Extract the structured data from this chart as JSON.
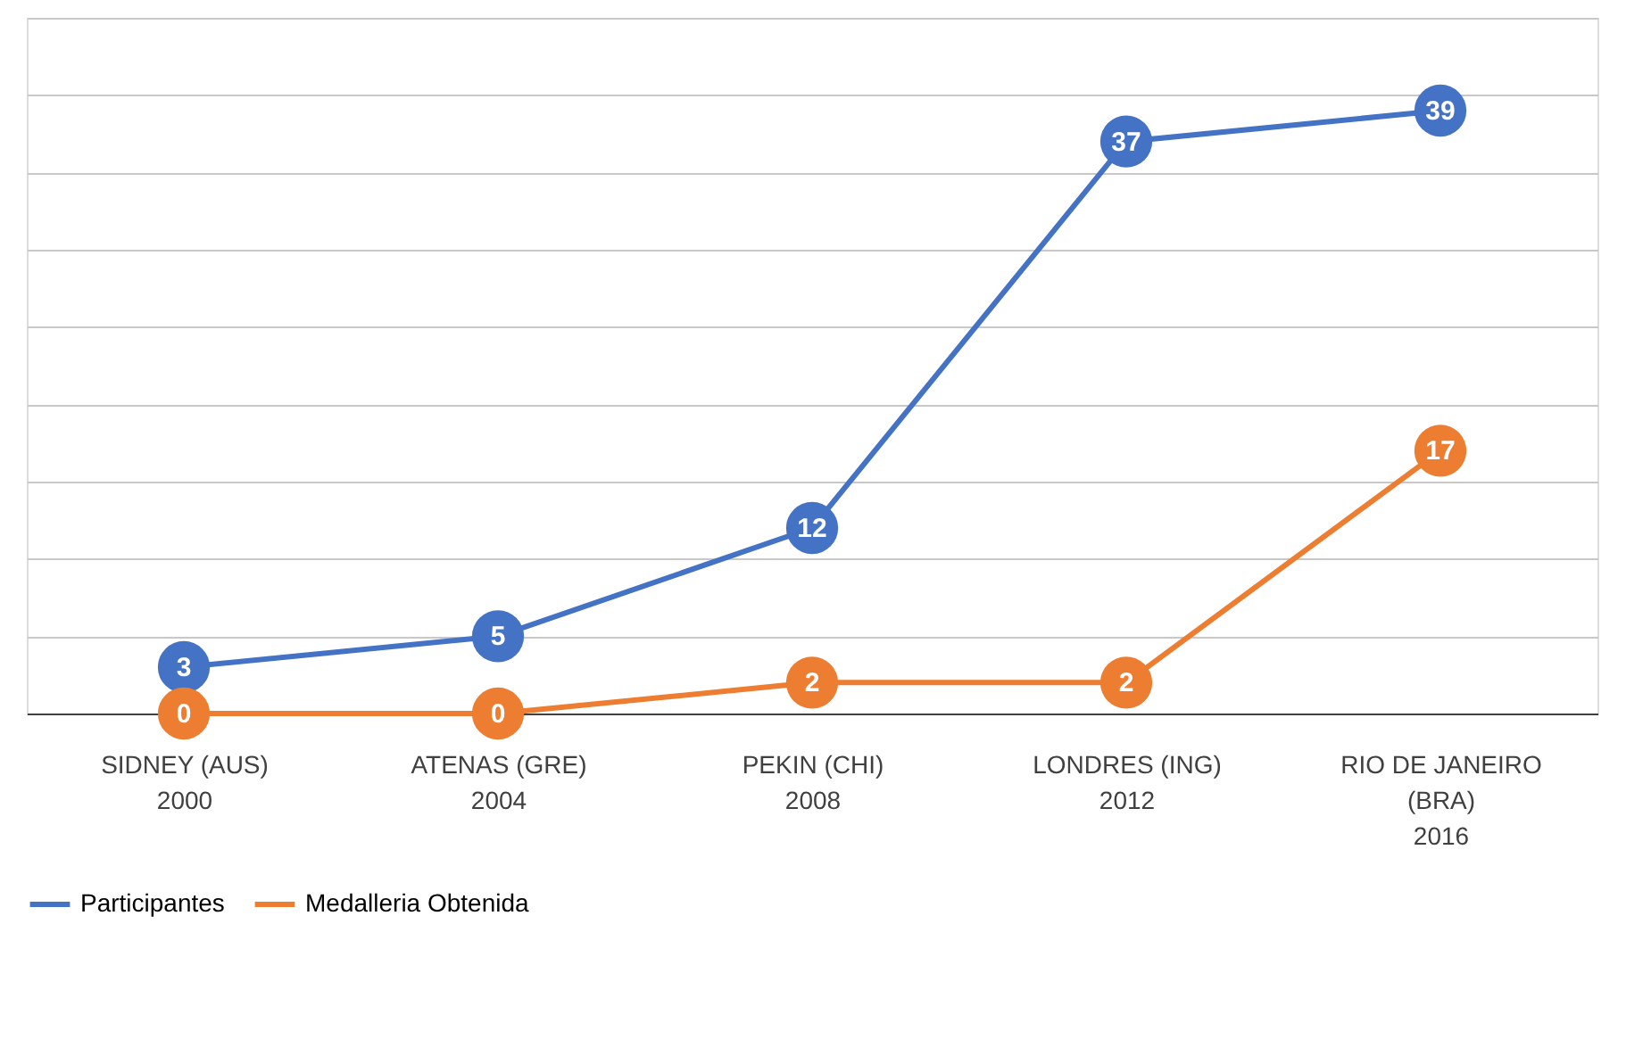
{
  "chart_data": {
    "type": "line",
    "categories": [
      "SIDNEY (AUS)\n\n2000",
      "ATENAS (GRE)\n\n2004",
      "PEKIN (CHI)\n\n2008",
      "LONDRES (ING)\n\n2012",
      "RIO DE JANEIRO\n(BRA)\n2016"
    ],
    "series": [
      {
        "name": "Participantes",
        "color": "#4472c4",
        "values": [
          3,
          5,
          12,
          37,
          39
        ]
      },
      {
        "name": "Medalleria Obtenida",
        "color": "#ed7d31",
        "values": [
          0,
          0,
          2,
          2,
          17
        ]
      }
    ],
    "ylim": [
      0,
      45
    ],
    "yticks": [
      {
        "value": 0,
        "label": null
      },
      {
        "value": 5,
        "label": null
      },
      {
        "value": 10,
        "label": null
      },
      {
        "value": 15,
        "label": null
      },
      {
        "value": 20,
        "label": null
      },
      {
        "value": 25,
        "label": null
      },
      {
        "value": 30,
        "label": null
      },
      {
        "value": 35,
        "label": null
      },
      {
        "value": 40,
        "label": null
      },
      {
        "value": 45,
        "label": null
      }
    ],
    "tick_labels": "x",
    "grid": "y",
    "legend": "bottom",
    "marker": "circle",
    "line_style": "solid",
    "data_labels": true
  }
}
